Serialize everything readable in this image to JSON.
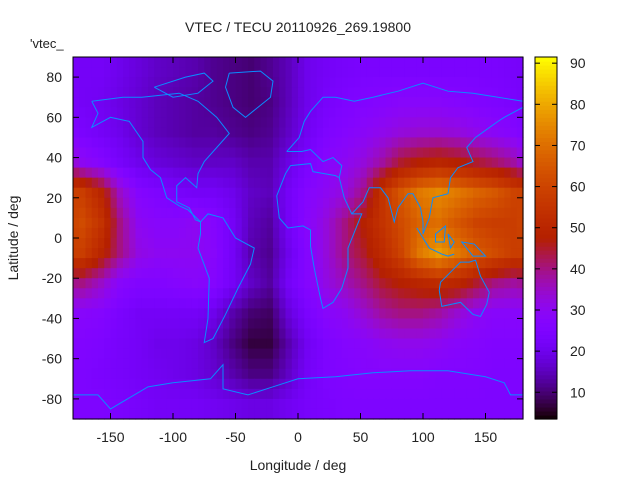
{
  "chart_data": {
    "type": "heatmap",
    "title": "VTEC / TECU 20110926_269.19800",
    "xlabel": "Longitude / deg",
    "ylabel": "Latitude / deg",
    "key_title": "'vtec_",
    "xlim": [
      -180,
      180
    ],
    "ylim": [
      -90,
      90
    ],
    "xticks": [
      -150,
      -100,
      -50,
      0,
      50,
      100,
      150
    ],
    "yticks": [
      -80,
      -60,
      -40,
      -20,
      0,
      20,
      40,
      60,
      80
    ],
    "colorbar": {
      "range": [
        3.5,
        91.5
      ],
      "ticks": [
        10,
        20,
        30,
        40,
        50,
        60,
        70,
        80,
        90
      ],
      "palette": "black-purple-red-yellow"
    },
    "coastline_color": "#0a8cff",
    "grid_lon_centers": [
      -172.5,
      -157.5,
      -142.5,
      -127.5,
      -112.5,
      -97.5,
      -82.5,
      -67.5,
      -52.5,
      -37.5,
      -22.5,
      -7.5,
      7.5,
      22.5,
      37.5,
      52.5,
      67.5,
      82.5,
      97.5,
      112.5,
      127.5,
      142.5,
      157.5,
      172.5
    ],
    "grid_lat_centers": [
      82.5,
      67.5,
      52.5,
      37.5,
      22.5,
      7.5,
      -7.5,
      -22.5,
      -37.5,
      -52.5,
      -67.5,
      -82.5
    ],
    "values": [
      [
        22,
        22,
        20,
        18,
        16,
        15,
        14,
        12,
        11,
        10,
        12,
        15,
        20,
        22,
        23,
        24,
        24,
        24,
        24,
        24,
        24,
        24,
        24,
        23
      ],
      [
        22,
        21,
        19,
        17,
        15,
        14,
        13,
        12,
        11,
        10,
        11,
        15,
        20,
        23,
        25,
        26,
        27,
        28,
        28,
        28,
        27,
        26,
        25,
        24
      ],
      [
        24,
        22,
        20,
        17,
        15,
        14,
        13,
        13,
        12,
        11,
        12,
        16,
        21,
        25,
        27,
        29,
        31,
        33,
        34,
        34,
        33,
        31,
        29,
        27
      ],
      [
        30,
        27,
        23,
        20,
        18,
        17,
        16,
        16,
        16,
        14,
        14,
        19,
        24,
        28,
        30,
        33,
        38,
        45,
        48,
        50,
        48,
        45,
        42,
        38
      ],
      [
        58,
        50,
        35,
        27,
        25,
        23,
        22,
        22,
        20,
        16,
        15,
        22,
        27,
        30,
        33,
        40,
        55,
        65,
        72,
        75,
        72,
        68,
        65,
        60
      ],
      [
        62,
        55,
        40,
        30,
        28,
        28,
        30,
        27,
        22,
        15,
        13,
        22,
        28,
        33,
        40,
        48,
        55,
        62,
        68,
        70,
        65,
        60,
        58,
        58
      ],
      [
        58,
        50,
        40,
        32,
        30,
        30,
        30,
        28,
        22,
        14,
        12,
        20,
        27,
        33,
        40,
        45,
        52,
        60,
        72,
        78,
        72,
        66,
        62,
        58
      ],
      [
        40,
        35,
        28,
        26,
        26,
        27,
        28,
        27,
        22,
        16,
        13,
        22,
        27,
        32,
        36,
        40,
        45,
        48,
        50,
        52,
        50,
        45,
        40,
        38
      ],
      [
        28,
        27,
        24,
        22,
        22,
        22,
        22,
        20,
        14,
        10,
        9,
        18,
        24,
        28,
        30,
        34,
        38,
        40,
        40,
        38,
        34,
        30,
        28,
        28
      ],
      [
        26,
        25,
        23,
        22,
        20,
        20,
        19,
        16,
        11,
        7,
        7,
        14,
        21,
        25,
        27,
        28,
        30,
        31,
        31,
        30,
        28,
        27,
        26,
        26
      ],
      [
        25,
        24,
        23,
        22,
        21,
        20,
        19,
        17,
        14,
        11,
        11,
        16,
        22,
        25,
        26,
        27,
        27,
        27,
        27,
        26,
        26,
        26,
        25,
        25
      ],
      [
        25,
        25,
        24,
        23,
        22,
        22,
        22,
        21,
        20,
        19,
        19,
        21,
        23,
        24,
        25,
        25,
        25,
        25,
        25,
        25,
        25,
        25,
        25,
        25
      ]
    ]
  }
}
